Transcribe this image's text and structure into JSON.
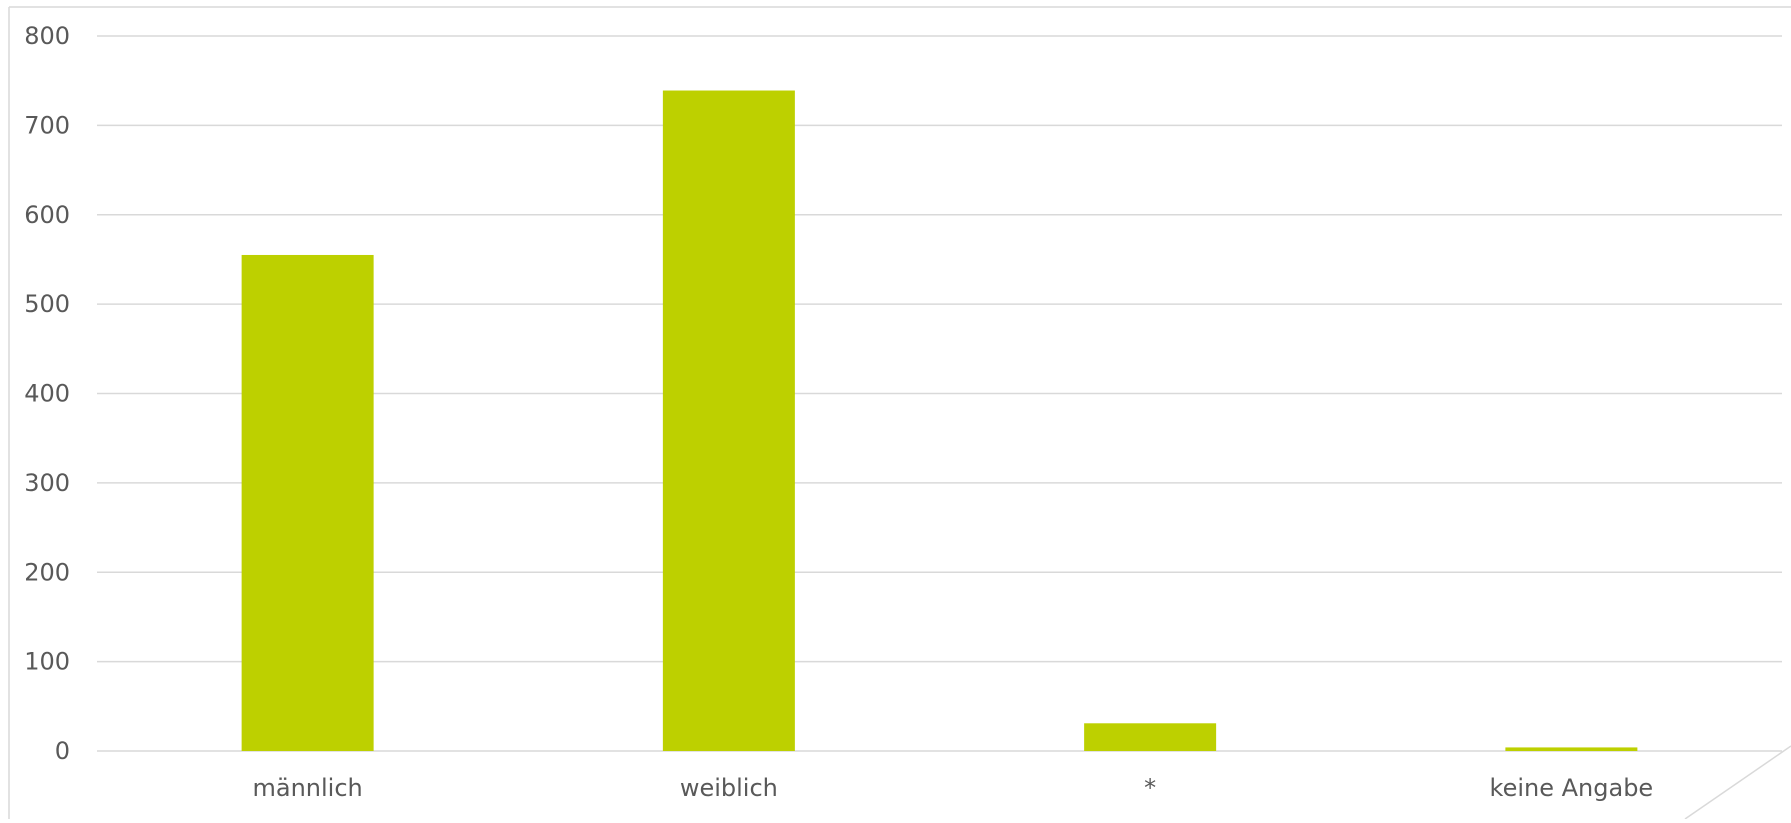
{
  "chart_data": {
    "type": "bar",
    "title": "",
    "xlabel": "",
    "ylabel": "",
    "categories": [
      "männlich",
      "weiblich",
      "*",
      "keine Angabe"
    ],
    "values": [
      555,
      739,
      31,
      4
    ],
    "ylim": [
      0,
      800
    ],
    "yticks": [
      0,
      100,
      200,
      300,
      400,
      500,
      600,
      700,
      800
    ],
    "grid": true,
    "legend": "none",
    "bar_color": "#BDD000",
    "grid_color": "#D9D9D9",
    "text_color": "#595959"
  }
}
